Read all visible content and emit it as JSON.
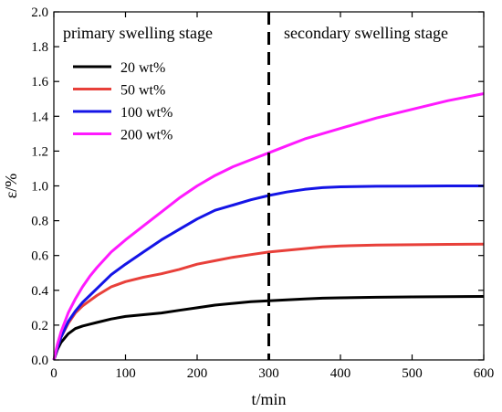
{
  "chart_data": {
    "type": "line",
    "xlabel": "t/min",
    "ylabel": "ε/%",
    "xlim": [
      0,
      600
    ],
    "ylim": [
      0,
      2.0
    ],
    "xticks": [
      "0",
      "100",
      "200",
      "300",
      "400",
      "500",
      "600"
    ],
    "yticks": [
      "0.0",
      "0.2",
      "0.4",
      "0.6",
      "0.8",
      "1.0",
      "1.2",
      "1.4",
      "1.6",
      "1.8",
      "2.0"
    ],
    "grid": false,
    "legend_position": "upper-left",
    "annotations": {
      "left_region": "primary swelling stage",
      "right_region": "secondary swelling stage",
      "divider_x": 300
    },
    "x": [
      0,
      5,
      10,
      20,
      30,
      40,
      50,
      60,
      80,
      100,
      125,
      150,
      175,
      200,
      225,
      250,
      275,
      300,
      325,
      350,
      375,
      400,
      450,
      500,
      550,
      600
    ],
    "series": [
      {
        "name": "20 wt%",
        "color": "#000000",
        "values": [
          0,
          0.06,
          0.1,
          0.15,
          0.18,
          0.195,
          0.205,
          0.215,
          0.235,
          0.25,
          0.26,
          0.27,
          0.285,
          0.3,
          0.315,
          0.325,
          0.335,
          0.34,
          0.345,
          0.35,
          0.355,
          0.357,
          0.36,
          0.362,
          0.363,
          0.365
        ]
      },
      {
        "name": "50 wt%",
        "color": "#e8403a",
        "values": [
          0,
          0.07,
          0.13,
          0.21,
          0.27,
          0.31,
          0.34,
          0.37,
          0.42,
          0.45,
          0.475,
          0.495,
          0.52,
          0.55,
          0.57,
          0.59,
          0.605,
          0.62,
          0.63,
          0.64,
          0.65,
          0.655,
          0.66,
          0.662,
          0.664,
          0.665
        ]
      },
      {
        "name": "100 wt%",
        "color": "#1414e6",
        "values": [
          0,
          0.07,
          0.13,
          0.22,
          0.28,
          0.33,
          0.37,
          0.41,
          0.49,
          0.55,
          0.62,
          0.69,
          0.75,
          0.81,
          0.86,
          0.89,
          0.92,
          0.945,
          0.965,
          0.98,
          0.99,
          0.995,
          0.998,
          0.999,
          1.0,
          1.0
        ]
      },
      {
        "name": "200 wt%",
        "color": "#ff1aff",
        "values": [
          0,
          0.09,
          0.16,
          0.27,
          0.35,
          0.42,
          0.48,
          0.53,
          0.62,
          0.69,
          0.77,
          0.85,
          0.93,
          1.0,
          1.06,
          1.11,
          1.15,
          1.19,
          1.23,
          1.27,
          1.3,
          1.33,
          1.39,
          1.44,
          1.49,
          1.53
        ]
      }
    ]
  }
}
